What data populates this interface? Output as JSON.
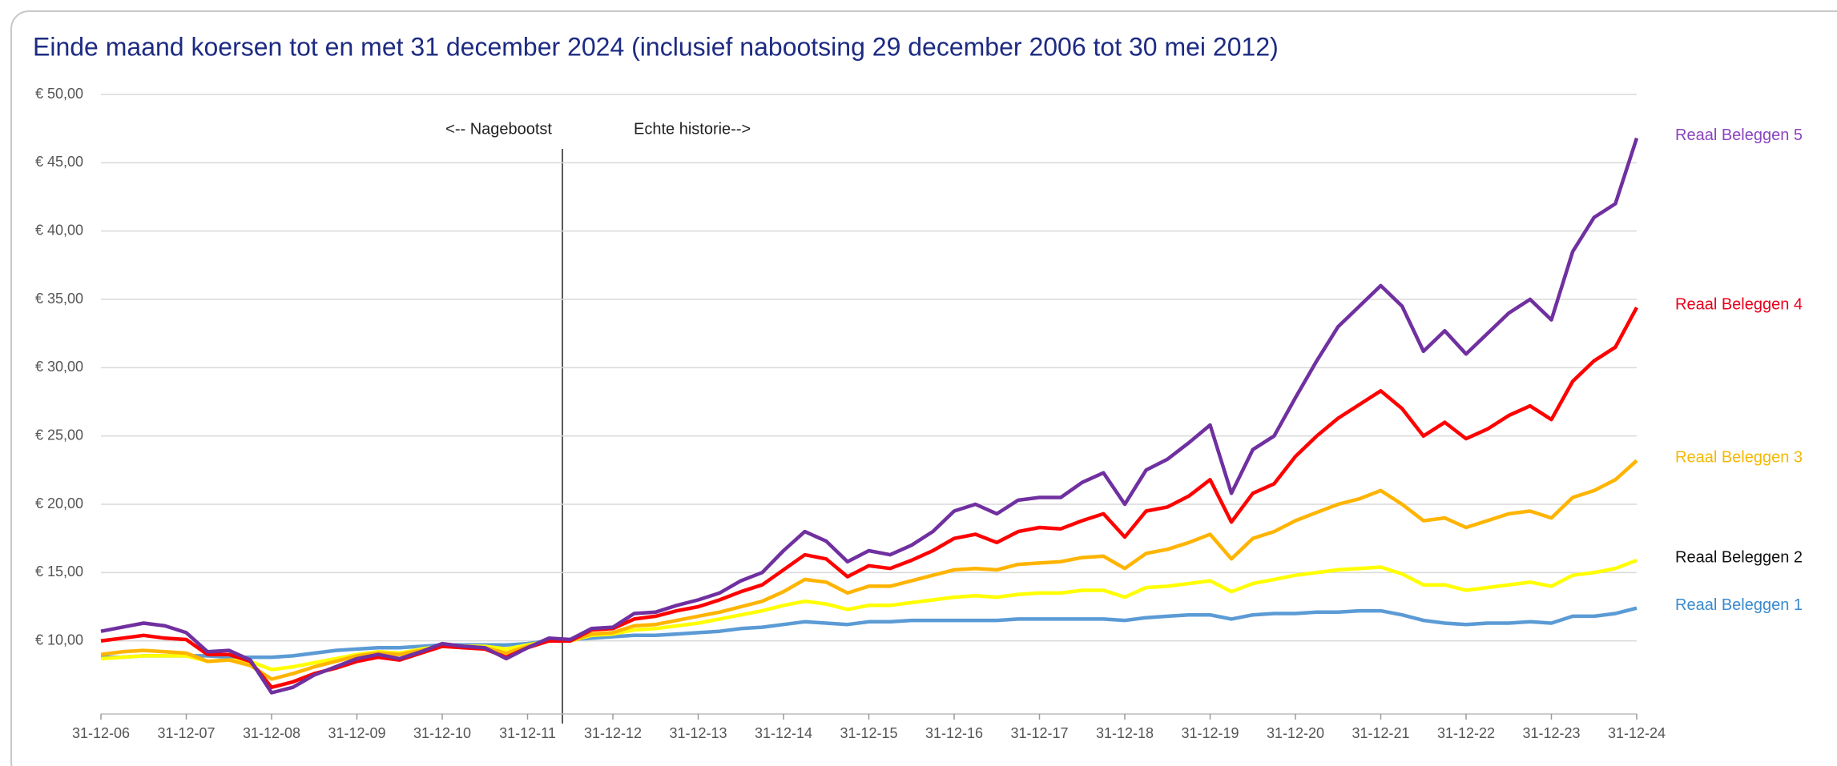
{
  "chart_data": {
    "type": "line",
    "title": "Einde maand koersen tot en met 31 december 2024 (inclusief nabootsing 29 december 2006 tot 30 mei 2012)",
    "annotations": [
      "<-- Nagebootst",
      "Echte historie-->"
    ],
    "categories": [
      "31-12-06",
      null,
      null,
      null,
      "31-12-07",
      null,
      null,
      null,
      "31-12-08",
      null,
      null,
      null,
      "31-12-09",
      null,
      null,
      null,
      "31-12-10",
      null,
      null,
      null,
      "31-12-11",
      null,
      null,
      null,
      "31-12-12",
      null,
      null,
      null,
      "31-12-13",
      null,
      null,
      null,
      "31-12-14",
      null,
      null,
      null,
      "31-12-15",
      null,
      null,
      null,
      "31-12-16",
      null,
      null,
      null,
      "31-12-17",
      null,
      null,
      null,
      "31-12-18",
      null,
      null,
      null,
      "31-12-19",
      null,
      null,
      null,
      "31-12-20",
      null,
      null,
      null,
      "31-12-21",
      null,
      null,
      null,
      "31-12-22",
      null,
      null,
      null,
      "31-12-23",
      null,
      null,
      null,
      "31-12-24"
    ],
    "ylim": [
      5,
      50
    ],
    "yticks": [
      {
        "value": 10,
        "label": "€ 10,00"
      },
      {
        "value": 15,
        "label": "€ 15,00"
      },
      {
        "value": 20,
        "label": "€ 20,00"
      },
      {
        "value": 25,
        "label": "€ 25,00"
      },
      {
        "value": 30,
        "label": "€ 30,00"
      },
      {
        "value": 35,
        "label": "€ 35,00"
      },
      {
        "value": 40,
        "label": "€ 40,00"
      },
      {
        "value": 45,
        "label": "€ 45,00"
      },
      {
        "value": 50,
        "label": "€ 50,00"
      }
    ],
    "grid": true,
    "series": [
      {
        "name": "Reaal Beleggen 1",
        "color": "#5b9bd5",
        "label_color": "#3a8ad0",
        "values": [
          8.8,
          8.8,
          8.9,
          8.9,
          8.9,
          8.9,
          8.8,
          8.8,
          8.8,
          8.9,
          9.1,
          9.3,
          9.4,
          9.5,
          9.5,
          9.6,
          9.7,
          9.7,
          9.7,
          9.7,
          9.8,
          10.0,
          10.1,
          10.2,
          10.3,
          10.4,
          10.4,
          10.5,
          10.6,
          10.7,
          10.9,
          11.0,
          11.2,
          11.4,
          11.3,
          11.2,
          11.4,
          11.4,
          11.5,
          11.5,
          11.5,
          11.5,
          11.5,
          11.6,
          11.6,
          11.6,
          11.6,
          11.6,
          11.5,
          11.7,
          11.8,
          11.9,
          11.9,
          11.6,
          11.9,
          12.0,
          12.0,
          12.1,
          12.1,
          12.2,
          12.2,
          11.9,
          11.5,
          11.3,
          11.2,
          11.3,
          11.3,
          11.4,
          11.3,
          11.8,
          11.8,
          12.0,
          12.4
        ]
      },
      {
        "name": "Reaal Beleggen 2",
        "color": "#ffff00",
        "label_color": "#111111",
        "values": [
          8.7,
          8.8,
          8.9,
          8.9,
          8.9,
          8.5,
          8.6,
          8.5,
          7.9,
          8.1,
          8.4,
          8.7,
          9.0,
          9.2,
          9.1,
          9.4,
          9.6,
          9.6,
          9.6,
          9.4,
          9.7,
          10.0,
          10.0,
          10.4,
          10.5,
          10.8,
          10.9,
          11.1,
          11.3,
          11.6,
          11.9,
          12.2,
          12.6,
          12.9,
          12.7,
          12.3,
          12.6,
          12.6,
          12.8,
          13.0,
          13.2,
          13.3,
          13.2,
          13.4,
          13.5,
          13.5,
          13.7,
          13.7,
          13.2,
          13.9,
          14.0,
          14.2,
          14.4,
          13.6,
          14.2,
          14.5,
          14.8,
          15.0,
          15.2,
          15.3,
          15.4,
          14.9,
          14.1,
          14.1,
          13.7,
          13.9,
          14.1,
          14.3,
          14.0,
          14.8,
          15.0,
          15.3,
          15.9
        ]
      },
      {
        "name": "Reaal Beleggen 3",
        "color": "#ffb400",
        "label_color": "#f5b800",
        "values": [
          9.0,
          9.2,
          9.3,
          9.2,
          9.1,
          8.5,
          8.6,
          8.2,
          7.2,
          7.6,
          8.1,
          8.5,
          8.9,
          9.1,
          9.0,
          9.3,
          9.6,
          9.6,
          9.5,
          9.1,
          9.6,
          10.0,
          10.0,
          10.5,
          10.6,
          11.1,
          11.2,
          11.5,
          11.8,
          12.1,
          12.5,
          12.9,
          13.6,
          14.5,
          14.3,
          13.5,
          14.0,
          14.0,
          14.4,
          14.8,
          15.2,
          15.3,
          15.2,
          15.6,
          15.7,
          15.8,
          16.1,
          16.2,
          15.3,
          16.4,
          16.7,
          17.2,
          17.8,
          16.0,
          17.5,
          18.0,
          18.8,
          19.4,
          20.0,
          20.4,
          21.0,
          20.0,
          18.8,
          19.0,
          18.3,
          18.8,
          19.3,
          19.5,
          19.0,
          20.5,
          21.0,
          21.8,
          23.2
        ]
      },
      {
        "name": "Reaal Beleggen 4",
        "color": "#ff0000",
        "label_color": "#e8001c",
        "values": [
          10.0,
          10.2,
          10.4,
          10.2,
          10.1,
          9.0,
          9.0,
          8.5,
          6.6,
          7.0,
          7.6,
          8.0,
          8.5,
          8.8,
          8.6,
          9.1,
          9.6,
          9.5,
          9.4,
          8.8,
          9.5,
          10.0,
          10.0,
          10.8,
          10.9,
          11.6,
          11.8,
          12.2,
          12.5,
          13.0,
          13.6,
          14.1,
          15.2,
          16.3,
          16.0,
          14.7,
          15.5,
          15.3,
          15.9,
          16.6,
          17.5,
          17.8,
          17.2,
          18.0,
          18.3,
          18.2,
          18.8,
          19.3,
          17.6,
          19.5,
          19.8,
          20.6,
          21.8,
          18.7,
          20.8,
          21.5,
          23.5,
          25.0,
          26.3,
          27.3,
          28.3,
          27.0,
          25.0,
          26.0,
          24.8,
          25.5,
          26.5,
          27.2,
          26.2,
          29.0,
          30.5,
          31.5,
          34.4
        ]
      },
      {
        "name": "Reaal Beleggen 5",
        "color": "#7030a0",
        "label_color": "#8a44c0",
        "values": [
          10.7,
          11.0,
          11.3,
          11.1,
          10.6,
          9.2,
          9.3,
          8.6,
          6.2,
          6.6,
          7.5,
          8.1,
          8.7,
          9.0,
          8.7,
          9.2,
          9.8,
          9.6,
          9.5,
          8.7,
          9.5,
          10.2,
          10.1,
          10.9,
          11.0,
          12.0,
          12.1,
          12.6,
          13.0,
          13.5,
          14.4,
          15.0,
          16.6,
          18.0,
          17.3,
          15.8,
          16.6,
          16.3,
          17.0,
          18.0,
          19.5,
          20.0,
          19.3,
          20.3,
          20.5,
          20.5,
          21.6,
          22.3,
          20.0,
          22.5,
          23.3,
          24.5,
          25.8,
          20.8,
          24.0,
          25.0,
          27.8,
          30.5,
          33.0,
          34.5,
          36.0,
          34.5,
          31.2,
          32.7,
          31.0,
          32.5,
          34.0,
          35.0,
          33.5,
          38.5,
          41.0,
          42.0,
          46.8
        ]
      }
    ]
  }
}
